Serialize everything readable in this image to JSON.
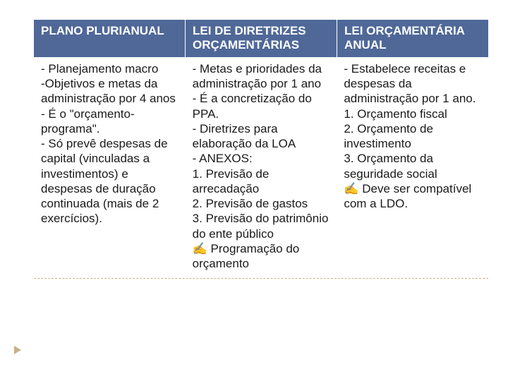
{
  "table": {
    "header_bg": "#4f6898",
    "header_text_color": "#ffffff",
    "body_text_color": "#1a1a1a",
    "font_size_header": 17,
    "font_size_body": 17,
    "border_dash_color": "#c9b08a",
    "columns": [
      {
        "header": "PLANO PLURIANUAL"
      },
      {
        "header": "LEI DE DIRETRIZES ORÇAMENTÁRIAS"
      },
      {
        "header": "LEI ORÇAMENTÁRIA ANUAL"
      }
    ],
    "rows": [
      {
        "cells": [
          "- Planejamento macro\n-Objetivos e metas da administração por 4 anos\n- É o \"orçamento-programa\".\n- Só prevê despesas de capital (vinculadas a investimentos) e despesas de duração continuada (mais de 2 exercícios).",
          "- Metas e prioridades da administração por 1 ano\n- É a concretização do PPA.\n- Diretrizes para elaboração da LOA\n- ANEXOS:\n1. Previsão de arrecadação\n2. Previsão de gastos\n3. Previsão do patrimônio do ente público\n✍ Programação do orçamento",
          "- Estabelece receitas e despesas da administração por 1 ano.\n1. Orçamento fiscal\n2. Orçamento de investimento\n3. Orçamento da seguridade social\n✍ Deve ser compatível com a LDO."
        ]
      }
    ]
  }
}
